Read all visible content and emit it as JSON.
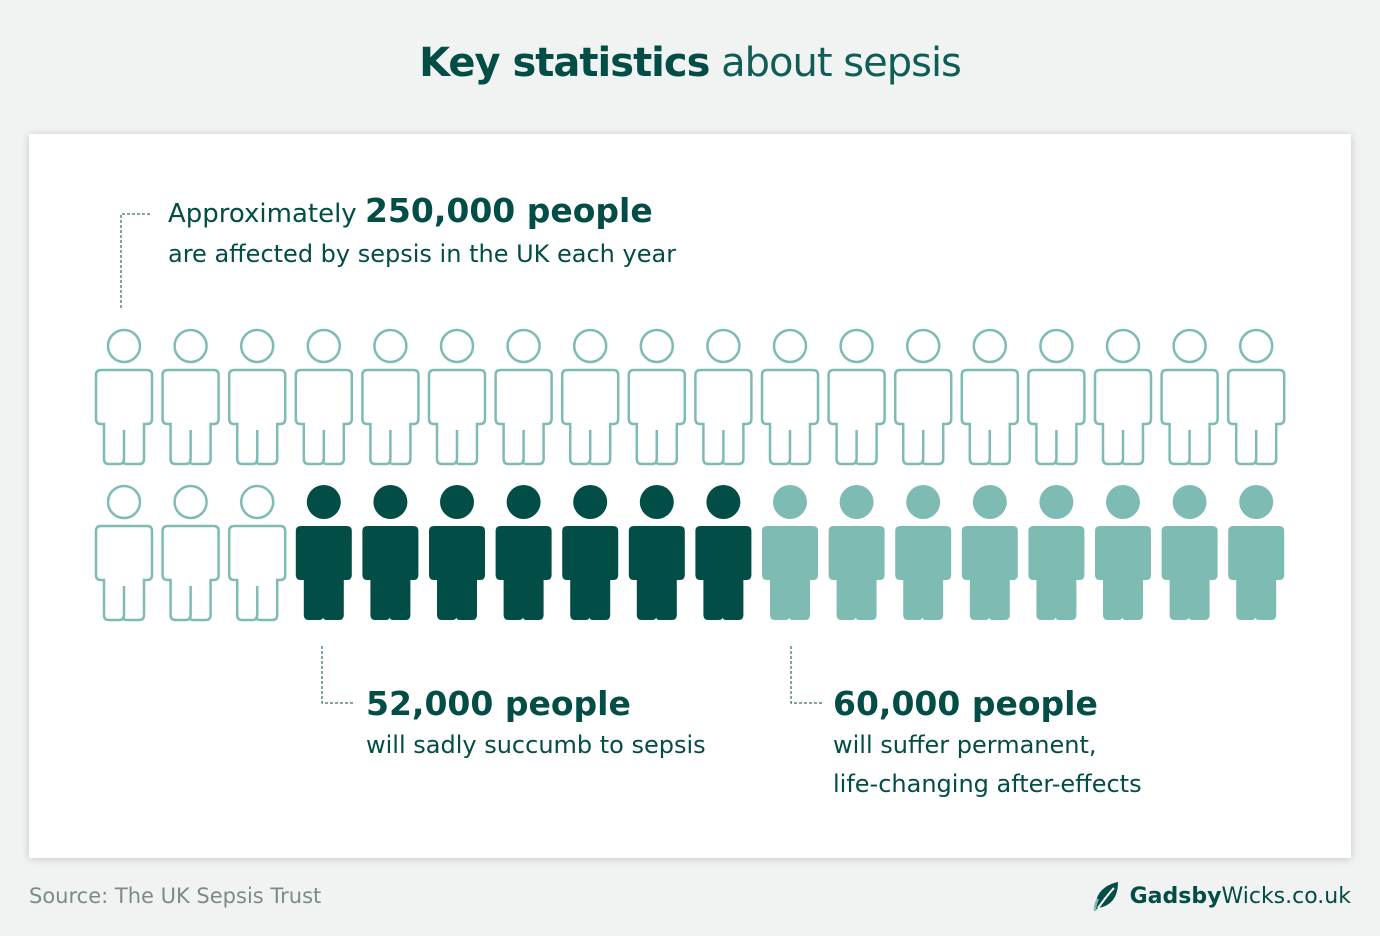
{
  "title": {
    "bold": "Key statistics",
    "light": "about sepsis"
  },
  "stats": {
    "affected": {
      "prefix": "Approximately",
      "highlight": "250,000 people",
      "detail": "are affected by sepsis in the UK each year",
      "value": 250000
    },
    "deaths": {
      "highlight": "52,000 people",
      "detail": "will sadly succumb to sepsis",
      "value": 52000
    },
    "after_effects": {
      "highlight": "60,000 people",
      "detail_lines": [
        "will suffer permanent,",
        "life-changing after-effects"
      ],
      "value": 60000
    }
  },
  "people_grid": {
    "rows": 2,
    "columns": 18,
    "total_icons": 36,
    "outline_icons": 21,
    "dark_icons": 7,
    "light_icons": 8,
    "colors": {
      "outline": "#7ebcb3",
      "dark": "#024d45",
      "light": "#7ebcb3"
    }
  },
  "footer": {
    "source": "Source: The UK Sepsis Trust",
    "brand_bold": "Gadsby",
    "brand_rest": "Wicks.co.uk",
    "logo_icon": "leaf-icon"
  },
  "colors": {
    "primary": "#024d45",
    "accent": "#7ebcb3",
    "background": "#f1f3f2",
    "card": "#ffffff",
    "source_text": "#7b8b88"
  }
}
